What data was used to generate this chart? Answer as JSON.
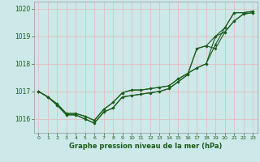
{
  "xlabel": "Graphe pression niveau de la mer (hPa)",
  "background_color": "#cce8e8",
  "line_color": "#1a5c1a",
  "ylim": [
    1015.5,
    1020.25
  ],
  "xlim": [
    -0.5,
    23.5
  ],
  "yticks": [
    1016,
    1017,
    1018,
    1019,
    1020
  ],
  "xticks": [
    0,
    1,
    2,
    3,
    4,
    5,
    6,
    7,
    8,
    9,
    10,
    11,
    12,
    13,
    14,
    15,
    16,
    17,
    18,
    19,
    20,
    21,
    22,
    23
  ],
  "line1": [
    1017.0,
    1016.8,
    1016.55,
    1016.2,
    1016.2,
    1016.1,
    1015.95,
    1016.35,
    1016.6,
    1016.95,
    1017.05,
    1017.05,
    1017.1,
    1017.15,
    1017.2,
    1017.45,
    1017.65,
    1017.85,
    1018.0,
    1018.7,
    1019.3,
    1019.85,
    1019.85,
    1019.9
  ],
  "line2": [
    1017.0,
    1016.8,
    1016.55,
    1016.2,
    1016.2,
    1016.1,
    1015.95,
    1016.35,
    1016.6,
    1016.95,
    1017.05,
    1017.05,
    1017.1,
    1017.15,
    1017.2,
    1017.45,
    1017.65,
    1017.85,
    1018.0,
    1019.0,
    1019.3,
    1019.85,
    1019.85,
    1019.9
  ],
  "line3": [
    1017.0,
    1016.8,
    1016.5,
    1016.15,
    1016.15,
    1016.0,
    1015.85,
    1016.25,
    1016.4,
    1016.8,
    1016.85,
    1016.9,
    1016.95,
    1017.0,
    1017.1,
    1017.35,
    1017.6,
    1018.55,
    1018.65,
    1018.55,
    1019.15,
    1019.55,
    1019.8,
    1019.85
  ],
  "line4": [
    1017.0,
    1016.8,
    1016.5,
    1016.15,
    1016.15,
    1016.0,
    1015.85,
    1016.25,
    1016.4,
    1016.8,
    1016.85,
    1016.9,
    1016.95,
    1017.0,
    1017.1,
    1017.35,
    1017.6,
    1018.55,
    1018.65,
    1019.0,
    1019.15,
    1019.55,
    1019.8,
    1019.85
  ]
}
